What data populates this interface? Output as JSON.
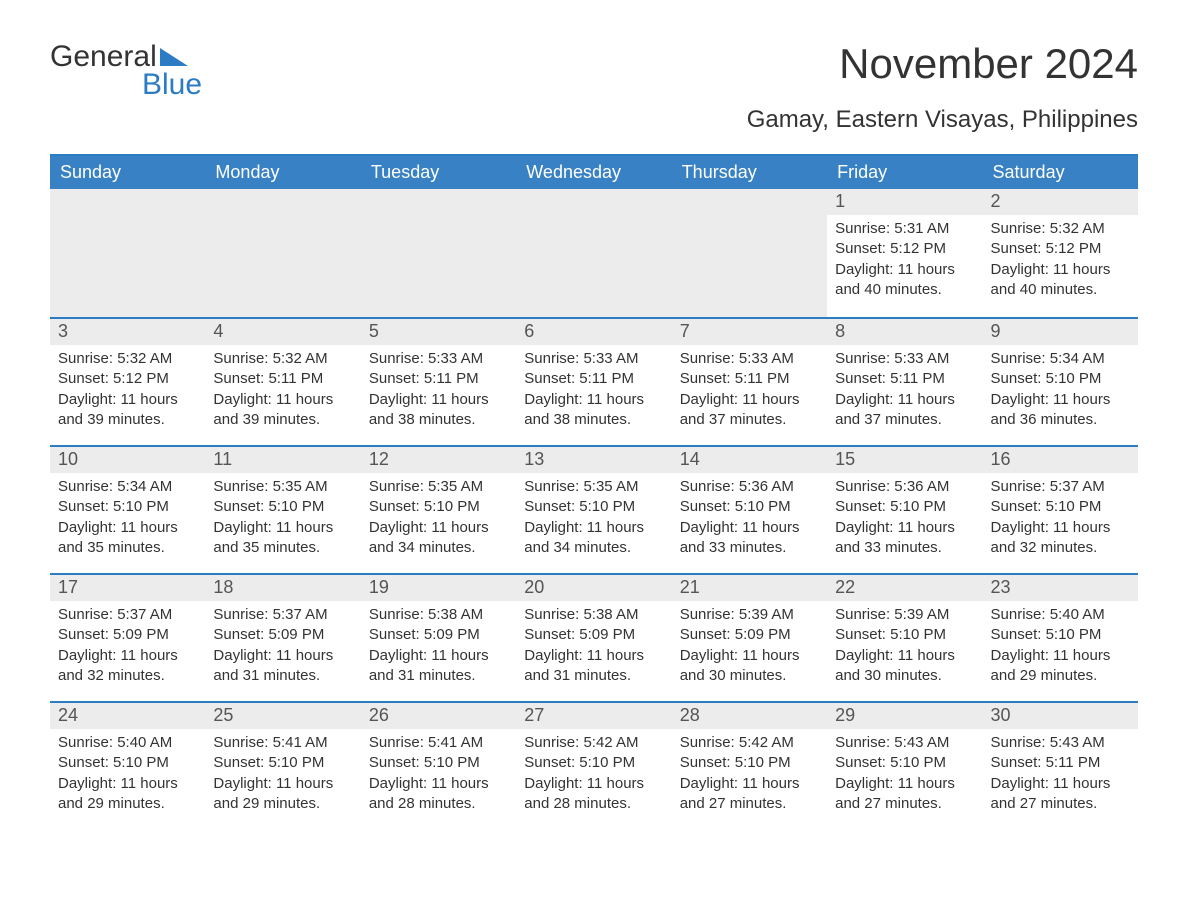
{
  "logo": {
    "text1": "General",
    "text2": "Blue",
    "accent_color": "#2b7cc4"
  },
  "title": "November 2024",
  "subtitle": "Gamay, Eastern Visayas, Philippines",
  "colors": {
    "header_bg": "#3881c4",
    "header_text": "#ffffff",
    "rule": "#2b7cc4",
    "daynum_bg": "#ececec",
    "text": "#333333",
    "background": "#ffffff"
  },
  "calendar": {
    "days_of_week": [
      "Sunday",
      "Monday",
      "Tuesday",
      "Wednesday",
      "Thursday",
      "Friday",
      "Saturday"
    ],
    "weeks": [
      [
        null,
        null,
        null,
        null,
        null,
        {
          "n": "1",
          "sunrise": "5:31 AM",
          "sunset": "5:12 PM",
          "daylight": "11 hours and 40 minutes."
        },
        {
          "n": "2",
          "sunrise": "5:32 AM",
          "sunset": "5:12 PM",
          "daylight": "11 hours and 40 minutes."
        }
      ],
      [
        {
          "n": "3",
          "sunrise": "5:32 AM",
          "sunset": "5:12 PM",
          "daylight": "11 hours and 39 minutes."
        },
        {
          "n": "4",
          "sunrise": "5:32 AM",
          "sunset": "5:11 PM",
          "daylight": "11 hours and 39 minutes."
        },
        {
          "n": "5",
          "sunrise": "5:33 AM",
          "sunset": "5:11 PM",
          "daylight": "11 hours and 38 minutes."
        },
        {
          "n": "6",
          "sunrise": "5:33 AM",
          "sunset": "5:11 PM",
          "daylight": "11 hours and 38 minutes."
        },
        {
          "n": "7",
          "sunrise": "5:33 AM",
          "sunset": "5:11 PM",
          "daylight": "11 hours and 37 minutes."
        },
        {
          "n": "8",
          "sunrise": "5:33 AM",
          "sunset": "5:11 PM",
          "daylight": "11 hours and 37 minutes."
        },
        {
          "n": "9",
          "sunrise": "5:34 AM",
          "sunset": "5:10 PM",
          "daylight": "11 hours and 36 minutes."
        }
      ],
      [
        {
          "n": "10",
          "sunrise": "5:34 AM",
          "sunset": "5:10 PM",
          "daylight": "11 hours and 35 minutes."
        },
        {
          "n": "11",
          "sunrise": "5:35 AM",
          "sunset": "5:10 PM",
          "daylight": "11 hours and 35 minutes."
        },
        {
          "n": "12",
          "sunrise": "5:35 AM",
          "sunset": "5:10 PM",
          "daylight": "11 hours and 34 minutes."
        },
        {
          "n": "13",
          "sunrise": "5:35 AM",
          "sunset": "5:10 PM",
          "daylight": "11 hours and 34 minutes."
        },
        {
          "n": "14",
          "sunrise": "5:36 AM",
          "sunset": "5:10 PM",
          "daylight": "11 hours and 33 minutes."
        },
        {
          "n": "15",
          "sunrise": "5:36 AM",
          "sunset": "5:10 PM",
          "daylight": "11 hours and 33 minutes."
        },
        {
          "n": "16",
          "sunrise": "5:37 AM",
          "sunset": "5:10 PM",
          "daylight": "11 hours and 32 minutes."
        }
      ],
      [
        {
          "n": "17",
          "sunrise": "5:37 AM",
          "sunset": "5:09 PM",
          "daylight": "11 hours and 32 minutes."
        },
        {
          "n": "18",
          "sunrise": "5:37 AM",
          "sunset": "5:09 PM",
          "daylight": "11 hours and 31 minutes."
        },
        {
          "n": "19",
          "sunrise": "5:38 AM",
          "sunset": "5:09 PM",
          "daylight": "11 hours and 31 minutes."
        },
        {
          "n": "20",
          "sunrise": "5:38 AM",
          "sunset": "5:09 PM",
          "daylight": "11 hours and 31 minutes."
        },
        {
          "n": "21",
          "sunrise": "5:39 AM",
          "sunset": "5:09 PM",
          "daylight": "11 hours and 30 minutes."
        },
        {
          "n": "22",
          "sunrise": "5:39 AM",
          "sunset": "5:10 PM",
          "daylight": "11 hours and 30 minutes."
        },
        {
          "n": "23",
          "sunrise": "5:40 AM",
          "sunset": "5:10 PM",
          "daylight": "11 hours and 29 minutes."
        }
      ],
      [
        {
          "n": "24",
          "sunrise": "5:40 AM",
          "sunset": "5:10 PM",
          "daylight": "11 hours and 29 minutes."
        },
        {
          "n": "25",
          "sunrise": "5:41 AM",
          "sunset": "5:10 PM",
          "daylight": "11 hours and 29 minutes."
        },
        {
          "n": "26",
          "sunrise": "5:41 AM",
          "sunset": "5:10 PM",
          "daylight": "11 hours and 28 minutes."
        },
        {
          "n": "27",
          "sunrise": "5:42 AM",
          "sunset": "5:10 PM",
          "daylight": "11 hours and 28 minutes."
        },
        {
          "n": "28",
          "sunrise": "5:42 AM",
          "sunset": "5:10 PM",
          "daylight": "11 hours and 27 minutes."
        },
        {
          "n": "29",
          "sunrise": "5:43 AM",
          "sunset": "5:10 PM",
          "daylight": "11 hours and 27 minutes."
        },
        {
          "n": "30",
          "sunrise": "5:43 AM",
          "sunset": "5:11 PM",
          "daylight": "11 hours and 27 minutes."
        }
      ]
    ]
  },
  "labels": {
    "sunrise_prefix": "Sunrise: ",
    "sunset_prefix": "Sunset: ",
    "daylight_prefix": "Daylight: "
  }
}
